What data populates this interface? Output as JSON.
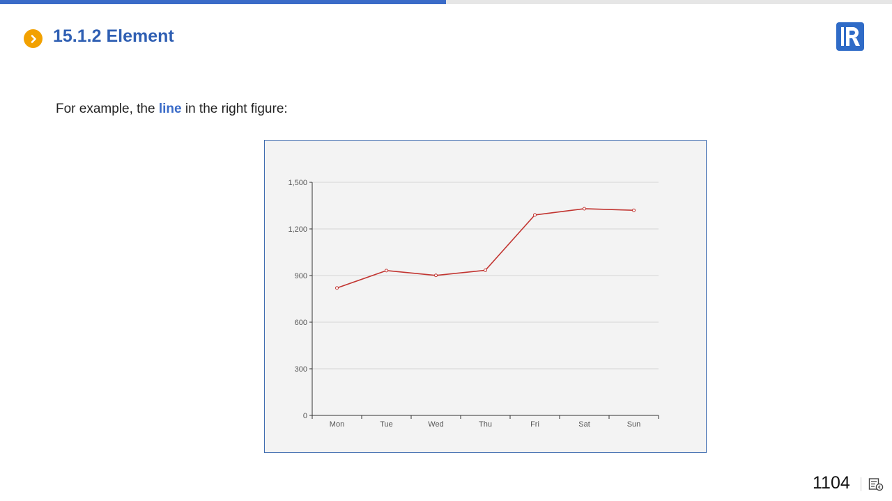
{
  "progress": {
    "fraction": 0.5
  },
  "slide": {
    "title": "15.1.2 Element",
    "intro_before": "For example, the ",
    "intro_highlight": "line",
    "intro_after": " in the right figure:",
    "page_number": "1104"
  },
  "icons": {
    "bullet": "chevron-right-icon",
    "logo": "r-logo-icon",
    "nav": "slide-nav-icon"
  },
  "colors": {
    "accent": "#3a6bc8",
    "bullet": "#f2a100",
    "series": "#c23531"
  },
  "chart_data": {
    "type": "line",
    "categories": [
      "Mon",
      "Tue",
      "Wed",
      "Thu",
      "Fri",
      "Sat",
      "Sun"
    ],
    "series": [
      {
        "values": [
          820,
          932,
          901,
          934,
          1290,
          1330,
          1320
        ]
      }
    ],
    "ylim": [
      0,
      1500
    ],
    "yticks": [
      "0",
      "300",
      "600",
      "900",
      "1,200",
      "1,500"
    ],
    "ytick_values": [
      0,
      300,
      600,
      900,
      1200,
      1500
    ],
    "grid": true
  }
}
